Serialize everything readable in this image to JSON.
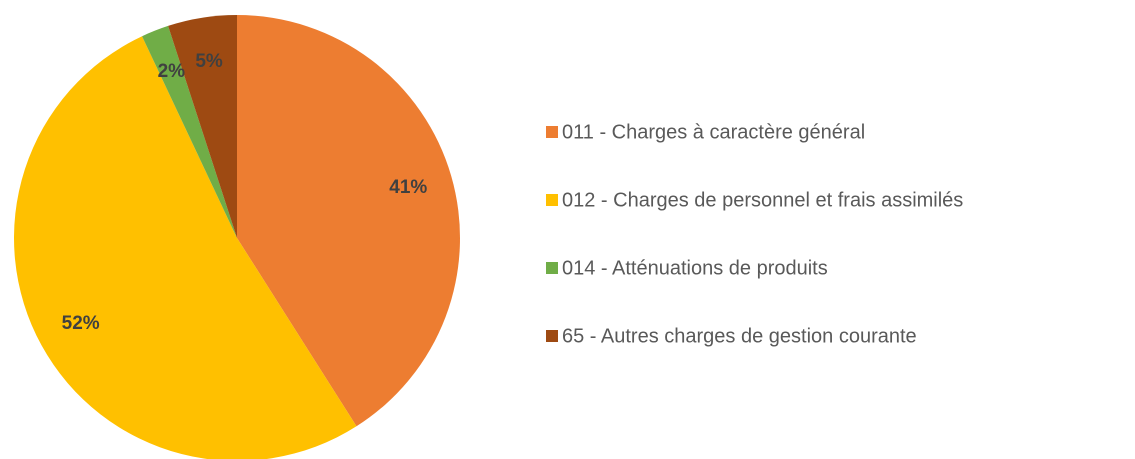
{
  "chart_data": {
    "type": "pie",
    "categories": [
      "011 - Charges à caractère général",
      "012 - Charges de personnel et frais assimilés",
      "014 - Atténuations de produits",
      "65 - Autres charges de gestion courante"
    ],
    "values": [
      41,
      52,
      2,
      5
    ],
    "value_labels": [
      "41%",
      "52%",
      "2%",
      "5%"
    ],
    "colors": [
      "#ED7D31",
      "#FFC000",
      "#70AD47",
      "#9E4A12"
    ],
    "legend": "right"
  }
}
